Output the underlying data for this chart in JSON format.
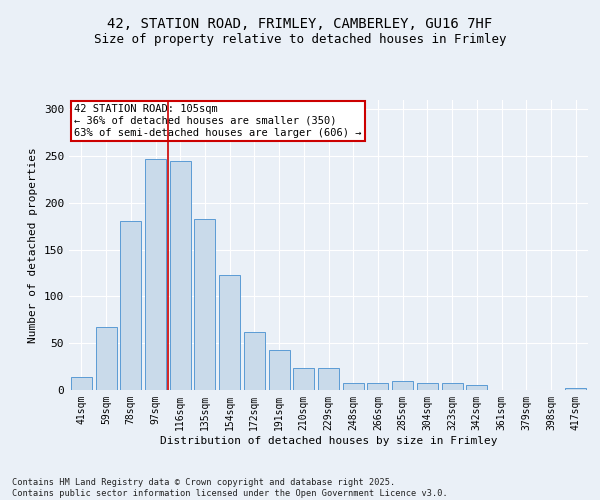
{
  "title_line1": "42, STATION ROAD, FRIMLEY, CAMBERLEY, GU16 7HF",
  "title_line2": "Size of property relative to detached houses in Frimley",
  "xlabel": "Distribution of detached houses by size in Frimley",
  "ylabel": "Number of detached properties",
  "categories": [
    "41sqm",
    "59sqm",
    "78sqm",
    "97sqm",
    "116sqm",
    "135sqm",
    "154sqm",
    "172sqm",
    "191sqm",
    "210sqm",
    "229sqm",
    "248sqm",
    "266sqm",
    "285sqm",
    "304sqm",
    "323sqm",
    "342sqm",
    "361sqm",
    "379sqm",
    "398sqm",
    "417sqm"
  ],
  "values": [
    14,
    67,
    181,
    247,
    245,
    183,
    123,
    62,
    43,
    24,
    24,
    8,
    8,
    10,
    8,
    7,
    5,
    0,
    0,
    0,
    2
  ],
  "bar_color": "#c9daea",
  "bar_edge_color": "#5b9bd5",
  "annotation_text": "42 STATION ROAD: 105sqm\n← 36% of detached houses are smaller (350)\n63% of semi-detached houses are larger (606) →",
  "annotation_box_color": "#ffffff",
  "annotation_box_edge_color": "#cc0000",
  "vline_x": 3.5,
  "vline_color": "#cc0000",
  "ylim": [
    0,
    310
  ],
  "yticks": [
    0,
    50,
    100,
    150,
    200,
    250,
    300
  ],
  "footer": "Contains HM Land Registry data © Crown copyright and database right 2025.\nContains public sector information licensed under the Open Government Licence v3.0.",
  "bg_color": "#eaf0f7",
  "plot_bg_color": "#eaf0f7",
  "grid_color": "#ffffff",
  "title_fontsize": 10,
  "subtitle_fontsize": 9,
  "bar_width": 0.85
}
